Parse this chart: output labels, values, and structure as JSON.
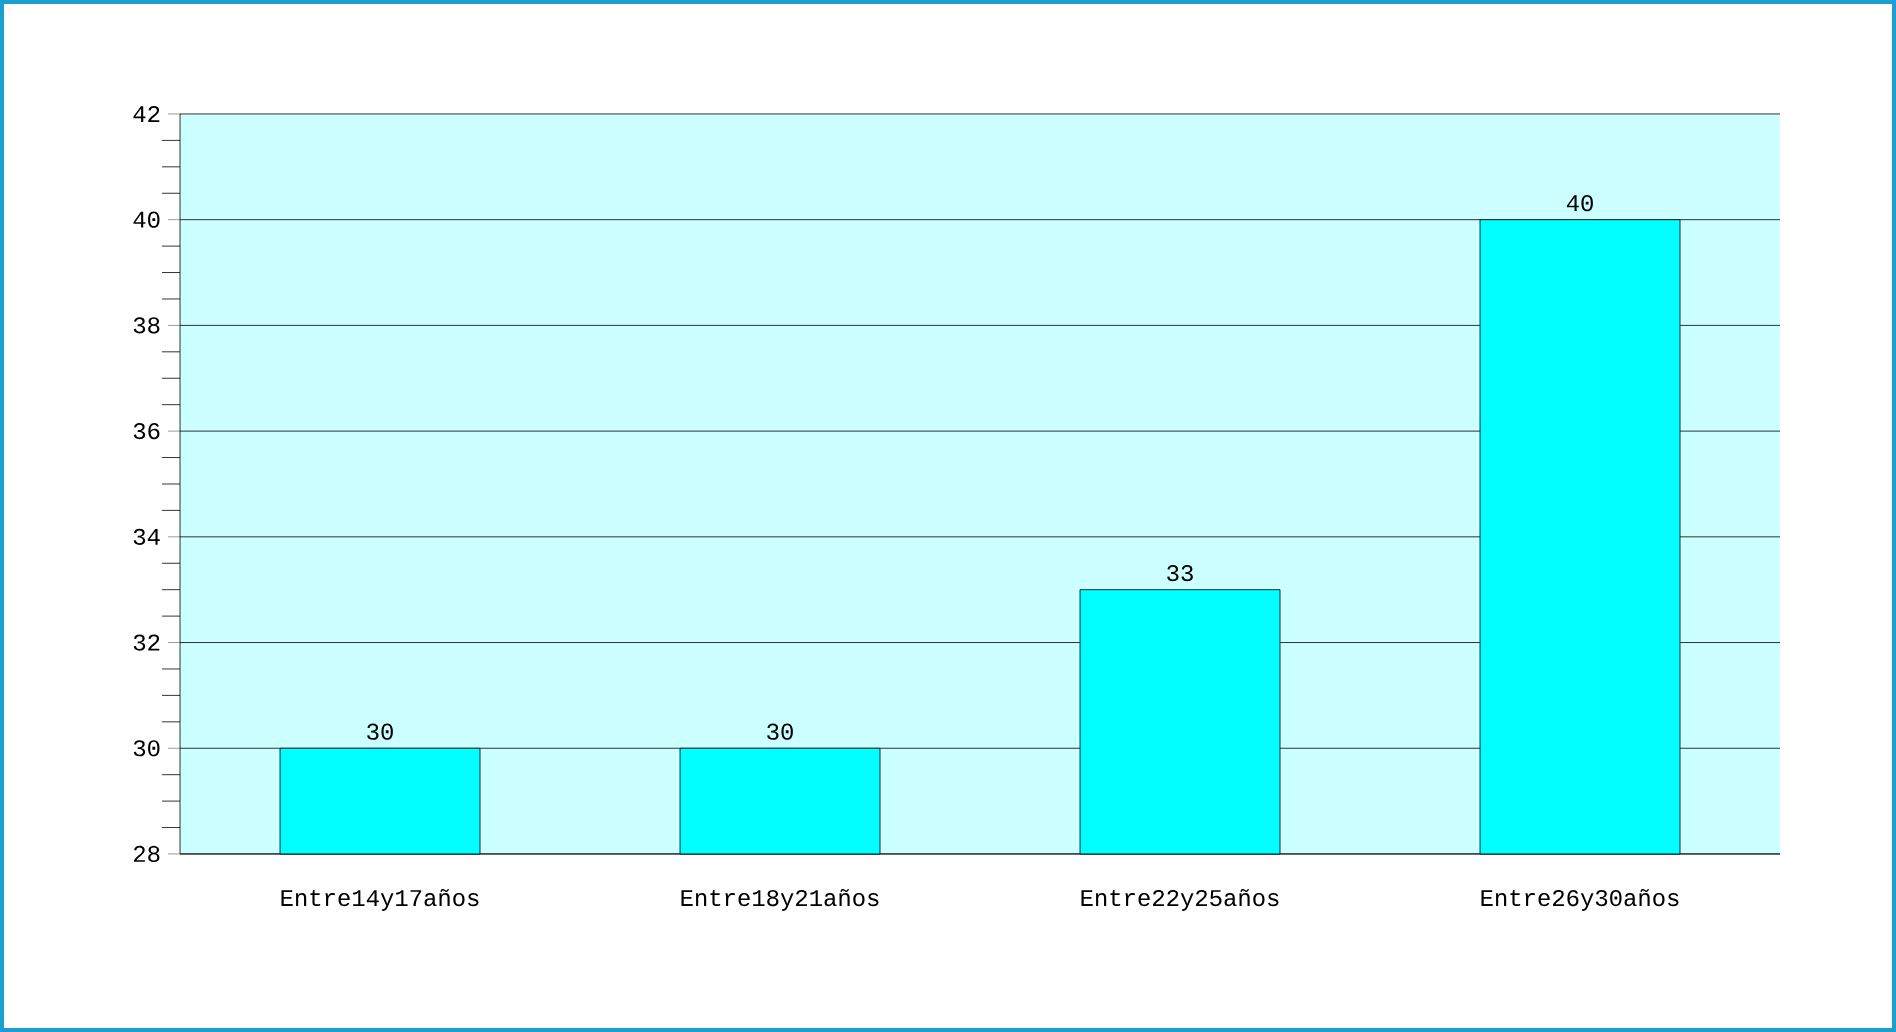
{
  "chart_data": {
    "type": "bar",
    "categories": [
      "Entre14y17años",
      "Entre18y21años",
      "Entre22y25años",
      "Entre26y30años"
    ],
    "values": [
      30,
      30,
      33,
      40
    ],
    "color": "#00ffff",
    "ylim": [
      28,
      42
    ],
    "yticks": [
      28,
      30,
      32,
      34,
      36,
      38,
      40,
      42
    ],
    "grid": "y",
    "data_labels": true
  }
}
